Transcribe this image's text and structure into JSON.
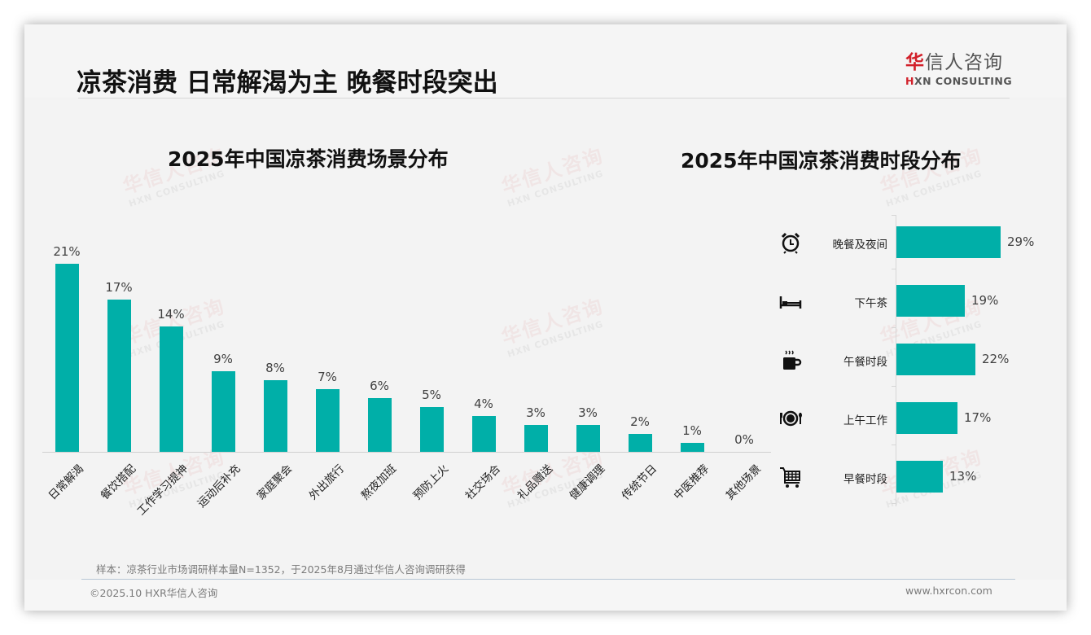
{
  "page": {
    "title": "凉茶消费 日常解渴为主 晚餐时段突出",
    "logo": {
      "cn_red": "华",
      "cn_rest": "信人咨询",
      "en_red": "H",
      "en_rest": "XN CONSULTING"
    },
    "watermark": {
      "cn": "华信人咨询",
      "en": "HXN CONSULTING"
    },
    "source_note": "样本：凉茶行业市场调研样本量N=1352，于2025年8月通过华信人咨询调研获得",
    "copyright": "©2025.10 HXR华信人咨询",
    "website": "www.hxrcon.com",
    "colors": {
      "bar": "#00afa8",
      "logo_red": "#d2202a"
    }
  },
  "chart_data": [
    {
      "type": "bar",
      "title": "2025年中国凉茶消费场景分布",
      "xlabel": "",
      "ylabel": "",
      "ylim": [
        0,
        22
      ],
      "grid": false,
      "legend": "none",
      "categories": [
        "日常解渴",
        "餐饮搭配",
        "工作学习提神",
        "运动后补充",
        "家庭聚会",
        "外出旅行",
        "熬夜加班",
        "预防上火",
        "社交场合",
        "礼品赠送",
        "健康调理",
        "传统节日",
        "中医推荐",
        "其他场景"
      ],
      "values": [
        21,
        17,
        14,
        9,
        8,
        7,
        6,
        5,
        4,
        3,
        3,
        2,
        1,
        0
      ],
      "labels": [
        "21%",
        "17%",
        "14%",
        "9%",
        "8%",
        "7%",
        "6%",
        "5%",
        "4%",
        "3%",
        "3%",
        "2%",
        "1%",
        "0%"
      ]
    },
    {
      "type": "bar",
      "orientation": "horizontal",
      "title": "2025年中国凉茶消费时段分布",
      "xlabel": "",
      "ylabel": "",
      "grid": false,
      "legend": "none",
      "categories": [
        "晚餐及夜间",
        "下午茶",
        "午餐时段",
        "上午工作",
        "早餐时段"
      ],
      "values": [
        29,
        19,
        22,
        17,
        13
      ],
      "labels": [
        "29%",
        "19%",
        "22%",
        "17%",
        "13%"
      ],
      "icons": [
        "alarm-clock-icon",
        "bed-icon",
        "coffee-mug-icon",
        "plate-cutlery-icon",
        "shopping-cart-icon"
      ]
    }
  ]
}
